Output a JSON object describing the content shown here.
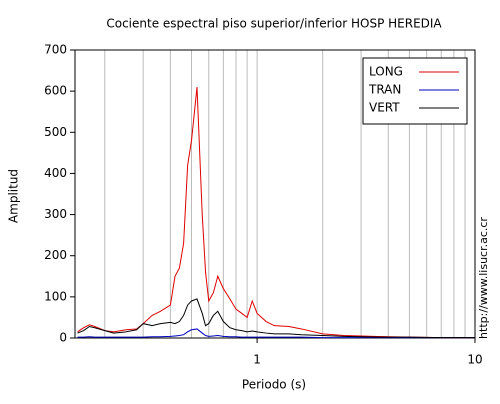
{
  "chart_data": {
    "type": "line",
    "title": "Cociente espectral piso superior/inferior  HOSP HEREDIA",
    "x_label": "Periodo (s)",
    "y_label": "Amplitud",
    "side_note": "http://www.lisucr.ac.cr",
    "log_x": true,
    "grid": "x",
    "xlim": [
      0.146,
      10
    ],
    "xticks": [
      1,
      10
    ],
    "xgrid": [
      0.2,
      0.3,
      0.4,
      0.5,
      0.6,
      0.7,
      0.8,
      0.9,
      1,
      2,
      3,
      4,
      5,
      6,
      7,
      8,
      9
    ],
    "ylim": [
      0,
      700
    ],
    "yticks": [
      0,
      100,
      200,
      300,
      400,
      500,
      600,
      700
    ],
    "legend": "top-right",
    "x": [
      0.15,
      0.16,
      0.17,
      0.18,
      0.2,
      0.22,
      0.25,
      0.28,
      0.3,
      0.33,
      0.36,
      0.4,
      0.42,
      0.44,
      0.46,
      0.48,
      0.5,
      0.53,
      0.56,
      0.58,
      0.6,
      0.63,
      0.66,
      0.7,
      0.75,
      0.8,
      0.85,
      0.9,
      0.95,
      1.0,
      1.1,
      1.2,
      1.4,
      1.6,
      2,
      2.5,
      3,
      4,
      5,
      7,
      10
    ],
    "series": [
      {
        "name": "LONG",
        "color": "#e00000",
        "values": [
          15,
          25,
          32,
          28,
          18,
          15,
          20,
          22,
          35,
          55,
          65,
          80,
          150,
          170,
          230,
          420,
          480,
          610,
          300,
          160,
          90,
          110,
          150,
          120,
          95,
          70,
          60,
          50,
          90,
          60,
          40,
          30,
          28,
          22,
          10,
          6,
          5,
          3,
          2,
          1,
          1
        ]
      },
      {
        "name": "TRAN",
        "color": "#0000c0",
        "values": [
          2,
          2,
          3,
          2,
          2,
          2,
          2,
          2,
          2,
          3,
          3,
          4,
          5,
          6,
          8,
          15,
          20,
          22,
          12,
          6,
          4,
          5,
          6,
          4,
          3,
          3,
          2,
          2,
          2,
          2,
          2,
          2,
          2,
          2,
          1,
          1,
          1,
          1,
          1,
          1,
          1
        ]
      },
      {
        "name": "VERT",
        "color": "#000000",
        "values": [
          12,
          18,
          28,
          25,
          18,
          12,
          15,
          20,
          35,
          30,
          35,
          38,
          35,
          40,
          55,
          80,
          90,
          95,
          60,
          30,
          35,
          55,
          65,
          40,
          25,
          20,
          18,
          15,
          17,
          15,
          12,
          10,
          10,
          8,
          6,
          4,
          3,
          2,
          2,
          1,
          1
        ]
      }
    ]
  }
}
